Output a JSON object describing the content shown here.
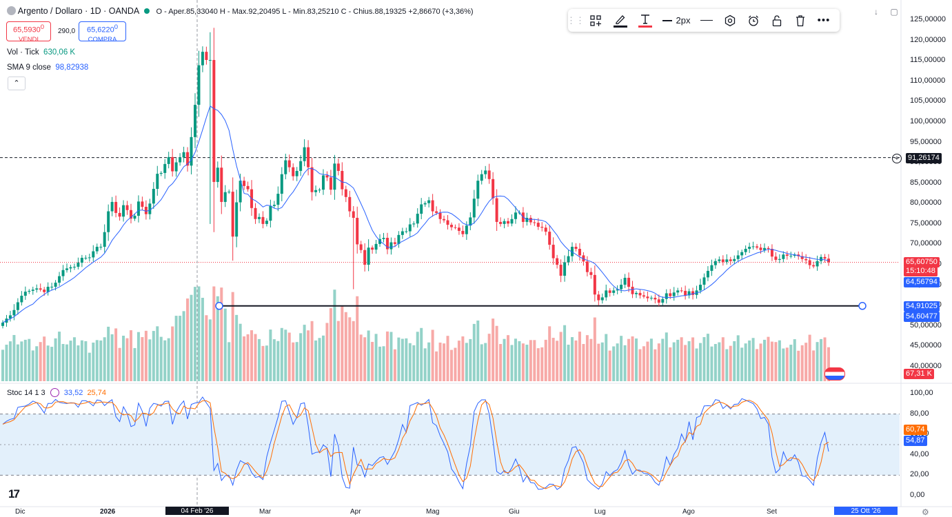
{
  "header": {
    "symbol": "Argento / Dollaro · 1D · OANDA",
    "ohlc_text": "O - Aper.85,33040  H - Max.92,20495  L - Min.83,25210  C - Chius.88,19325  +2,86670 (+3,36%)",
    "sell_price": "65,5930",
    "sell_price_sup": "0",
    "sell_label": "VENDI",
    "spread": "290,0",
    "buy_price": "65,6220",
    "buy_price_sup": "0",
    "buy_label": "COMPRA",
    "vol_label": "Vol · Tick",
    "vol_value": "630,06 K",
    "sma_label": "SMA 9 close",
    "sma_value": "98,82938",
    "collapse_icon": "chevron-up-icon"
  },
  "toolbar": {
    "items": [
      "drag-handle-icon",
      "apps-icon",
      "pencil-icon",
      "text-tool-icon",
      "line-style-icon",
      "line-tool-icon",
      "settings-hexagon-icon",
      "alert-clock-icon",
      "lock-icon",
      "trash-icon",
      "more-dots-icon"
    ],
    "width_label": "2px",
    "line_color": "#131722",
    "text_color": "#f23645"
  },
  "price_axis": {
    "ticks": [
      "125,00000",
      "120,00000",
      "115,00000",
      "110,00000",
      "105,00000",
      "100,00000",
      "95,00000",
      "90,00000",
      "85,00000",
      "80,00000",
      "75,00000",
      "70,00000",
      "65,00000",
      "60,00000",
      "55,00000",
      "50,00000",
      "45,00000",
      "40,00000"
    ],
    "tags": {
      "crosshair": "91,26174",
      "last_price": "65,60750",
      "countdown": "15:10:48",
      "sma": "64,56794",
      "hline_1": "54,91025",
      "hline_2": "54,60477",
      "volume": "67,31 K"
    }
  },
  "stoch_panel": {
    "label": "Stoc 14 1 3",
    "k_value": "33,52",
    "d_value": "25,74",
    "axis_ticks": [
      "100,00",
      "80,00",
      "60,00",
      "40,00",
      "20,00",
      "0,00"
    ],
    "k_tag": "60,74",
    "d_tag": "54,87"
  },
  "time_axis": {
    "labels": [
      "Dic",
      "2026",
      "Mar",
      "Apr",
      "Mag",
      "Giu",
      "Lug",
      "Ago",
      "Set"
    ],
    "crosshair_date": "04 Feb '26",
    "range_label": "25 Ott '26"
  },
  "colors": {
    "up": "#089981",
    "down": "#f23645",
    "up_vol": "#93d2c8",
    "down_vol": "#f7a9a7",
    "sma": "#2962ff",
    "stoch_k": "#2962ff",
    "stoch_d": "#ff6d00",
    "band": "#e3f0fb"
  },
  "chart_data": {
    "type": "candlestick",
    "instrument": "Argento / Dollaro",
    "interval": "1D",
    "ylim": [
      38,
      126
    ],
    "hlines": [
      91.26174,
      54.91025
    ],
    "closes": [
      50.8,
      51.8,
      52.6,
      53.9,
      55.8,
      57.4,
      58.4,
      58.6,
      58.9,
      59.2,
      58.9,
      58.3,
      59.6,
      59.6,
      60.6,
      62.2,
      63.7,
      64.1,
      64.4,
      64.5,
      65.5,
      66.7,
      66.7,
      66.8,
      68.3,
      69.4,
      69.4,
      73.0,
      78.1,
      80.4,
      77.7,
      76.8,
      79.6,
      78.4,
      76.3,
      77.0,
      80.5,
      79.2,
      77.4,
      80.0,
      83.6,
      87.3,
      87.5,
      89.7,
      91.4,
      87.9,
      90.1,
      91.3,
      92.6,
      89.3,
      96.3,
      104.2,
      113.9,
      117.2,
      115.2,
      115.2,
      85.3,
      88.8,
      80.4,
      82.8,
      82.9,
      71.9,
      80.3,
      85.6,
      84.3,
      83.5,
      78.9,
      76.2,
      76.7,
      75.0,
      75.8,
      79.4,
      79.7,
      82.4,
      87.2,
      90.6,
      88.9,
      86.7,
      88.0,
      90.4,
      93.8,
      88.9,
      82.8,
      83.3,
      83.4,
      86.9,
      86.4,
      83.4,
      89.8,
      88.0,
      83.5,
      81.6,
      78.1,
      76.5,
      70.0,
      68.6,
      65.0,
      69.2,
      68.7,
      70.1,
      71.3,
      71.6,
      68.8,
      70.5,
      70.1,
      72.3,
      73.2,
      73.2,
      74.9,
      75.1,
      77.5,
      79.8,
      80.1,
      80.8,
      78.1,
      77.7,
      76.2,
      75.9,
      74.8,
      74.2,
      74.1,
      73.3,
      72.5,
      74.6,
      76.6,
      81.2,
      85.6,
      87.2,
      88.1,
      86.0,
      81.3,
      75.5,
      75.0,
      75.7,
      75.1,
      76.2,
      77.8,
      77.8,
      75.5,
      76.5,
      75.4,
      75.3,
      74.3,
      74.1,
      73.1,
      69.9,
      66.6,
      65.0,
      62.3,
      65.6,
      67.1,
      69.4,
      68.9,
      67.3,
      65.8,
      63.2,
      62.5,
      57.7,
      56.3,
      57.0,
      58.7,
      58.1,
      58.7,
      59.0,
      60.1,
      61.8,
      59.6,
      57.8,
      58.1,
      57.5,
      57.2,
      56.8,
      56.9,
      56.5,
      55.7,
      56.6,
      58.0,
      57.3,
      58.2,
      58.7,
      58.6,
      57.5,
      58.5,
      57.6,
      58.7,
      60.1,
      61.9,
      63.5,
      64.9,
      65.9,
      66.3,
      65.7,
      66.3,
      65.9,
      66.4,
      67.3,
      68.1,
      68.9,
      69.4,
      69.5,
      69.2,
      68.6,
      69.1,
      68.9,
      67.0,
      66.2,
      66.4,
      67.5,
      67.2,
      67.2,
      67.5,
      67.1,
      66.4,
      66.1,
      64.9,
      64.6,
      65.9,
      66.9,
      66.5,
      65.6
    ],
    "volume_range_k": [
      20,
      135
    ],
    "stochastic": {
      "k_last": 33.52,
      "d_last": 25.74,
      "k_tag": 60.74,
      "d_tag": 54.87,
      "bands": [
        80,
        20
      ]
    }
  }
}
